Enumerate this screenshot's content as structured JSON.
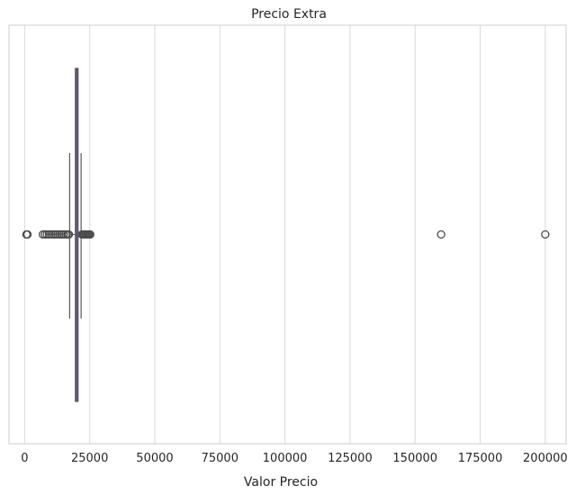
{
  "chart_data": {
    "type": "boxplot",
    "orientation": "horizontal",
    "title": "Precio Extra",
    "xlabel": "Valor Precio",
    "ylabel": "",
    "xlim": [
      -6000,
      208000
    ],
    "xticks": [
      0,
      25000,
      50000,
      75000,
      100000,
      125000,
      150000,
      175000,
      200000
    ],
    "xtick_labels": [
      "0",
      "25000",
      "50000",
      "75000",
      "100000",
      "125000",
      "150000",
      "175000",
      "200000"
    ],
    "grid": "vertical",
    "box": {
      "q1": 19500,
      "median": 19800,
      "q3": 20000,
      "whisker_low": 17300,
      "whisker_high": 21700,
      "box_color": "#7a4a8c",
      "median_color": "#5b5b5b"
    },
    "outliers": [
      700,
      900,
      1100,
      7000,
      7800,
      8600,
      9400,
      10200,
      11000,
      11800,
      12600,
      13400,
      14200,
      15000,
      15800,
      16600,
      17000,
      22000,
      22400,
      22800,
      23200,
      23600,
      24000,
      24400,
      24800,
      25200,
      160000,
      200000
    ],
    "colors": {
      "grid": "#d9d9d9",
      "frame": "#cccccc",
      "outlier_edge": "#4d4d4d",
      "whisker": "#5b5b5b"
    }
  }
}
